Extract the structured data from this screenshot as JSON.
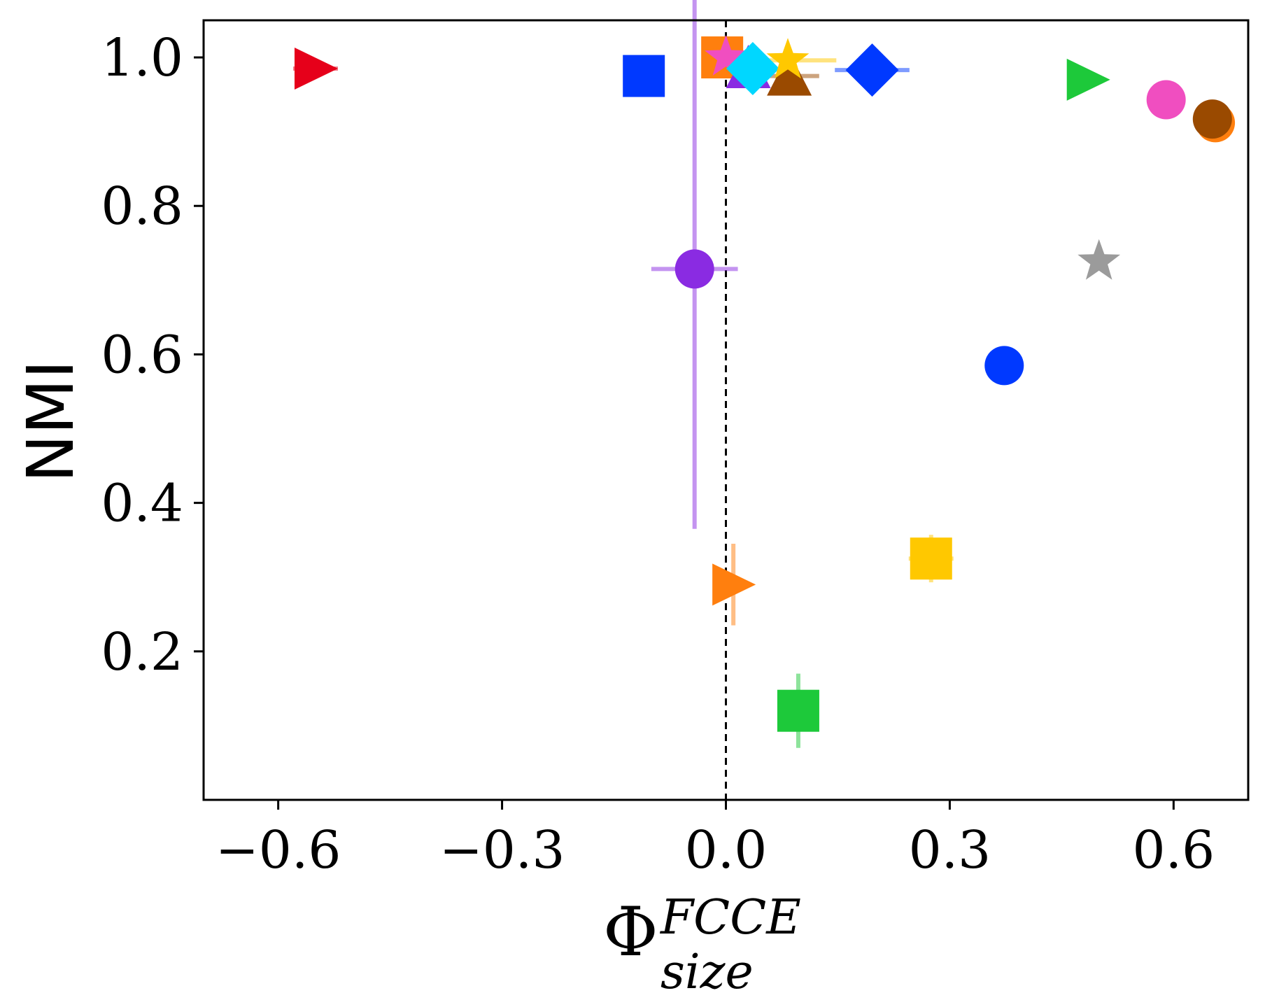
{
  "chart_data": {
    "type": "scatter",
    "xlabel": {
      "main": "Φ",
      "sup": "FCCE",
      "sub": "size"
    },
    "ylabel": "NMI",
    "xlim": [
      -0.7,
      0.7
    ],
    "ylim": [
      0.0,
      1.05
    ],
    "x_ticks": [
      -0.6,
      -0.3,
      0.0,
      0.3,
      0.6
    ],
    "x_tick_labels": [
      "−0.6",
      "−0.3",
      "0.0",
      "0.3",
      "0.6"
    ],
    "y_ticks": [
      0.2,
      0.4,
      0.6,
      0.8,
      1.0
    ],
    "y_tick_labels": [
      "0.2",
      "0.4",
      "0.6",
      "0.8",
      "1.0"
    ],
    "reference_line": {
      "x": 0.0,
      "style": "dashed"
    },
    "grid": false,
    "points": [
      {
        "x": -0.55,
        "y": 0.985,
        "marker": "triangle-right",
        "color": "#e6001a",
        "xerr": 0.03
      },
      {
        "x": -0.11,
        "y": 0.975,
        "marker": "square",
        "color": "#0039ff"
      },
      {
        "x": -0.042,
        "y": 0.715,
        "marker": "circle",
        "color": "#8a2be2",
        "xerr": 0.058,
        "yerr_low": 0.35,
        "yerr_high": 0.45
      },
      {
        "x": -0.005,
        "y": 1.0,
        "marker": "square",
        "color": "#ff7f0e"
      },
      {
        "x": 0.01,
        "y": 0.29,
        "marker": "triangle-right",
        "color": "#ff7f0e",
        "yerr_low": 0.055,
        "yerr_high": 0.055
      },
      {
        "x": 0.03,
        "y": 0.985,
        "marker": "triangle-up",
        "color": "#8a2be2"
      },
      {
        "x": 0.085,
        "y": 0.975,
        "marker": "triangle-up",
        "color": "#9a4a00",
        "xerr": 0.04
      },
      {
        "x": 0.0,
        "y": 1.0,
        "marker": "star",
        "color": "#f04ec0"
      },
      {
        "x": 0.036,
        "y": 0.985,
        "marker": "diamond",
        "color": "#00d7ff"
      },
      {
        "x": 0.083,
        "y": 0.996,
        "marker": "star",
        "color": "#ffc800",
        "xerr": 0.065
      },
      {
        "x": 0.196,
        "y": 0.983,
        "marker": "diamond",
        "color": "#0039ff",
        "xerr": 0.05
      },
      {
        "x": 0.275,
        "y": 0.325,
        "marker": "square",
        "color": "#ffc800",
        "xerr": 0.03,
        "yerr_low": 0.032,
        "yerr_high": 0.032
      },
      {
        "x": 0.097,
        "y": 0.12,
        "marker": "square",
        "color": "#1dc93a",
        "yerr_low": 0.05,
        "yerr_high": 0.05
      },
      {
        "x": 0.373,
        "y": 0.585,
        "marker": "circle",
        "color": "#0039ff"
      },
      {
        "x": 0.5,
        "y": 0.725,
        "marker": "star",
        "color": "#9b9b9b"
      },
      {
        "x": 0.485,
        "y": 0.97,
        "marker": "triangle-right",
        "color": "#1dc93a"
      },
      {
        "x": 0.59,
        "y": 0.943,
        "marker": "circle",
        "color": "#f04ec0"
      },
      {
        "x": 0.656,
        "y": 0.912,
        "marker": "circle",
        "color": "#ff7f0e"
      },
      {
        "x": 0.652,
        "y": 0.917,
        "marker": "circle",
        "color": "#9a4a00"
      }
    ]
  }
}
